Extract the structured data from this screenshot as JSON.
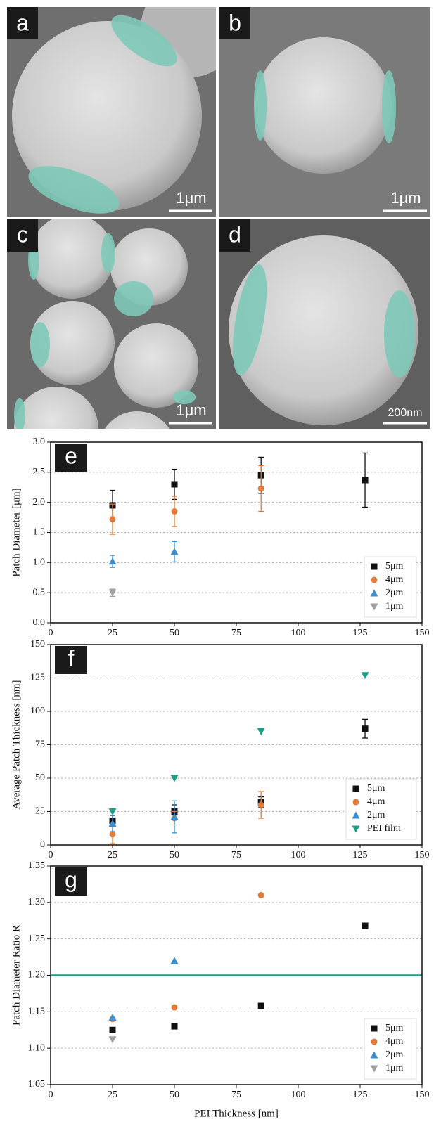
{
  "images": [
    {
      "label": "a",
      "scale": "1μm"
    },
    {
      "label": "b",
      "scale": "1μm"
    },
    {
      "label": "c",
      "scale": "1μm"
    },
    {
      "label": "d",
      "scale": "200nm"
    }
  ],
  "chart_data": [
    {
      "type": "scatter",
      "panel_label": "e",
      "y_label": "Patch Diameter [μm]",
      "x": [
        25,
        50,
        85,
        127
      ],
      "xlim": [
        0,
        150
      ],
      "xticks": [
        0,
        25,
        50,
        75,
        100,
        125,
        150
      ],
      "ylim": [
        0,
        3
      ],
      "yticks": [
        {
          "value": 0,
          "label": "0.0"
        },
        0.5,
        {
          "value": 1,
          "label": "1.0"
        },
        1.5,
        {
          "value": 2,
          "label": "2.0"
        },
        2.5,
        {
          "value": 3,
          "label": "3.0"
        }
      ],
      "grid": true,
      "legend": "lower right",
      "series": [
        {
          "name": "5μm",
          "color": "#111111",
          "marker": "square",
          "values": [
            1.95,
            2.3,
            2.45,
            2.37
          ],
          "errors": [
            0.25,
            0.25,
            0.3,
            0.45
          ]
        },
        {
          "name": "4μm",
          "color": "#e07b39",
          "marker": "circle",
          "values": [
            1.72,
            1.85,
            2.23,
            null
          ],
          "errors": [
            0.25,
            0.25,
            0.38,
            null
          ]
        },
        {
          "name": "2μm",
          "color": "#3a8fd0",
          "marker": "triangle-up",
          "values": [
            1.02,
            1.18,
            null,
            null
          ],
          "errors": [
            0.1,
            0.17,
            null,
            null
          ]
        },
        {
          "name": "1μm",
          "color": "#a0a0a0",
          "marker": "triangle-down",
          "values": [
            0.5,
            null,
            null,
            null
          ],
          "errors": [
            0.06,
            null,
            null,
            null
          ]
        }
      ]
    },
    {
      "type": "scatter",
      "panel_label": "f",
      "y_label": "Average Patch Thickness [nm]",
      "x": [
        25,
        50,
        85,
        127
      ],
      "xlim": [
        0,
        150
      ],
      "xticks": [
        0,
        25,
        50,
        75,
        100,
        125,
        150
      ],
      "ylim": [
        0,
        150
      ],
      "yticks": [
        0,
        25,
        50,
        75,
        100,
        125,
        150
      ],
      "grid": true,
      "legend": "lower right",
      "series": [
        {
          "name": "5μm",
          "color": "#111111",
          "marker": "square",
          "values": [
            18,
            25,
            32,
            87
          ],
          "errors": [
            4,
            5,
            4,
            7
          ]
        },
        {
          "name": "4μm",
          "color": "#e07b39",
          "marker": "circle",
          "values": [
            8,
            20,
            30,
            null
          ],
          "errors": [
            7,
            5,
            10,
            null
          ]
        },
        {
          "name": "2μm",
          "color": "#3a8fd0",
          "marker": "triangle-up",
          "values": [
            16,
            21,
            null,
            null
          ],
          "errors": [
            6,
            12,
            null,
            null
          ]
        },
        {
          "name": "PEI film",
          "color": "#1f9e85",
          "marker": "triangle-down",
          "values": [
            25,
            50,
            85,
            127
          ]
        }
      ]
    },
    {
      "type": "scatter",
      "panel_label": "g",
      "y_label": "Patch Diameter Ratio R",
      "x_label": "PEI Thickness [nm]",
      "x": [
        25,
        50,
        85,
        127
      ],
      "xlim": [
        0,
        150
      ],
      "xticks": [
        0,
        25,
        50,
        75,
        100,
        125,
        150
      ],
      "ylim": [
        1.05,
        1.35
      ],
      "yticks": [
        1.05,
        {
          "value": 1.1,
          "label": "1.10"
        },
        1.15,
        {
          "value": 1.2,
          "label": "1.20"
        },
        1.25,
        {
          "value": 1.3,
          "label": "1.30"
        },
        1.35
      ],
      "grid": true,
      "legend": "lower right",
      "reference_line": {
        "value": 1.2,
        "color": "#1f9e85"
      },
      "series": [
        {
          "name": "5μm",
          "color": "#111111",
          "marker": "square",
          "values": [
            1.125,
            1.13,
            1.158,
            1.268
          ]
        },
        {
          "name": "4μm",
          "color": "#e07b39",
          "marker": "circle",
          "values": [
            1.14,
            1.156,
            1.31,
            null
          ]
        },
        {
          "name": "2μm",
          "color": "#3a8fd0",
          "marker": "triangle-up",
          "values": [
            1.142,
            1.22,
            null,
            null
          ]
        },
        {
          "name": "1μm",
          "color": "#a0a0a0",
          "marker": "triangle-down",
          "values": [
            1.112,
            null,
            null,
            null
          ]
        }
      ]
    }
  ]
}
